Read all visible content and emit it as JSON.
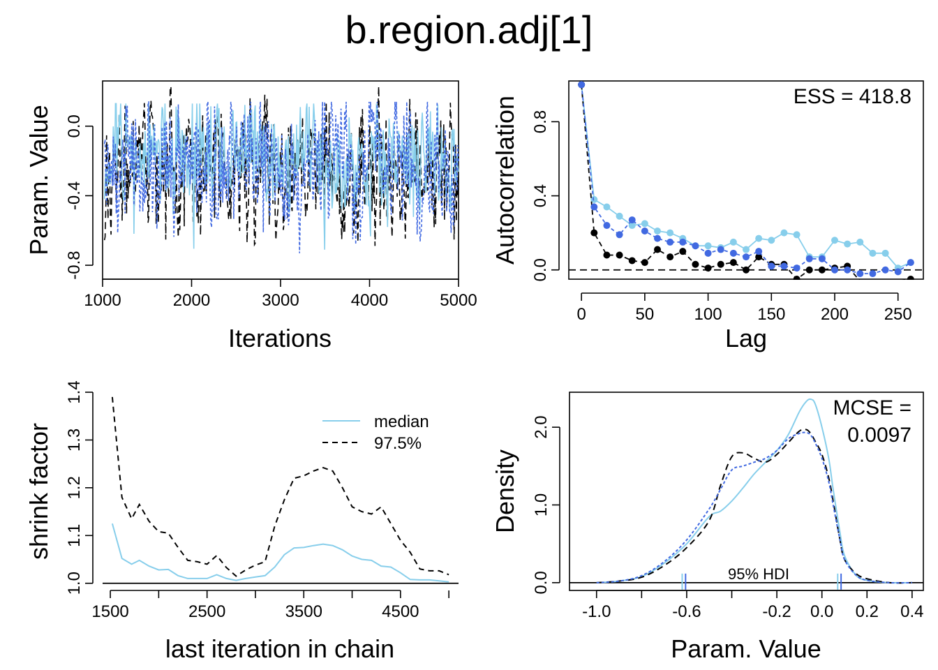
{
  "title": "b.region.adj[1]",
  "colors": {
    "chain1": "#87CEEB",
    "chain2": "#000000",
    "chain3": "#4169E1"
  },
  "chart_data": [
    {
      "id": "trace",
      "type": "line",
      "xlabel": "Iterations",
      "ylabel": "Param. Value",
      "xlim": [
        1000,
        5000
      ],
      "ylim": [
        -0.88,
        0.26
      ],
      "xticks": [
        1000,
        2000,
        3000,
        4000,
        5000
      ],
      "yticks": [
        -0.8,
        -0.4,
        0.0
      ],
      "ytick_labels": [
        "-0.8",
        "-0.4",
        "0.0"
      ],
      "series": [
        {
          "seed": 11,
          "mean": -0.18,
          "sd": 0.17,
          "min": -0.85,
          "max": 0.13
        },
        {
          "seed": 23,
          "mean": -0.26,
          "sd": 0.19,
          "min": -0.82,
          "max": 0.23
        },
        {
          "seed": 37,
          "mean": -0.22,
          "sd": 0.19,
          "min": -0.86,
          "max": 0.14
        }
      ]
    },
    {
      "id": "autocorrelation",
      "type": "line",
      "xlabel": "Lag",
      "ylabel": "Autocorrelation",
      "annotation": "ESS = 418.8",
      "xlim": [
        -10,
        270
      ],
      "ylim": [
        -0.05,
        1.02
      ],
      "xticks": [
        0,
        50,
        100,
        150,
        200,
        250
      ],
      "yticks": [
        0.0,
        0.4,
        0.8
      ],
      "ytick_labels": [
        "0.0",
        "0.4",
        "0.8"
      ],
      "x": [
        0,
        10,
        20,
        30,
        40,
        50,
        60,
        70,
        80,
        90,
        100,
        110,
        120,
        130,
        140,
        150,
        160,
        170,
        180,
        190,
        200,
        210,
        220,
        230,
        240,
        250,
        260
      ],
      "series": [
        {
          "values": [
            1.0,
            0.38,
            0.34,
            0.29,
            0.24,
            0.25,
            0.21,
            0.2,
            0.17,
            0.13,
            0.13,
            0.12,
            0.15,
            0.11,
            0.17,
            0.16,
            0.2,
            0.19,
            0.07,
            0.07,
            0.16,
            0.14,
            0.15,
            0.09,
            0.09,
            0.01,
            0.04
          ]
        },
        {
          "values": [
            1.0,
            0.2,
            0.08,
            0.08,
            0.05,
            0.04,
            0.11,
            0.07,
            0.1,
            0.03,
            0.01,
            0.03,
            0.04,
            0.0,
            0.07,
            0.03,
            0.03,
            -0.05,
            0.0,
            0.0,
            0.01,
            0.02,
            -0.06,
            -0.06,
            -0.06,
            -0.06,
            -0.05
          ]
        },
        {
          "values": [
            1.0,
            0.34,
            0.24,
            0.19,
            0.27,
            0.21,
            0.17,
            0.15,
            0.15,
            0.13,
            0.09,
            0.11,
            0.09,
            0.07,
            0.1,
            0.02,
            0.02,
            0.01,
            0.06,
            0.06,
            0.0,
            0.0,
            -0.02,
            -0.02,
            0.0,
            -0.01,
            0.04
          ]
        }
      ]
    },
    {
      "id": "shrink",
      "type": "line",
      "xlabel": "last iteration in chain",
      "ylabel": "shrink factor",
      "xlim": [
        1420,
        5100
      ],
      "ylim": [
        0.985,
        1.4
      ],
      "xticks": [
        1500,
        2500,
        3500,
        4500
      ],
      "xtick_labels": [
        "1500",
        "2500",
        "3500",
        "4500"
      ],
      "yticks": [
        1.0,
        1.1,
        1.2,
        1.3,
        1.4
      ],
      "ytick_labels": [
        "1.0",
        "1.1",
        "1.2",
        "1.3",
        "1.4"
      ],
      "hline": 1.0,
      "x": [
        1520,
        1620,
        1720,
        1800,
        1900,
        2000,
        2100,
        2200,
        2300,
        2400,
        2500,
        2600,
        2700,
        2800,
        2900,
        3000,
        3100,
        3200,
        3300,
        3400,
        3500,
        3600,
        3700,
        3800,
        3900,
        4000,
        4100,
        4200,
        4300,
        4400,
        4500,
        4600,
        4700,
        4800,
        4900,
        5000
      ],
      "series": [
        {
          "name": "median",
          "values": [
            1.125,
            1.052,
            1.04,
            1.048,
            1.036,
            1.028,
            1.029,
            1.016,
            1.01,
            1.01,
            1.01,
            1.018,
            1.01,
            1.006,
            1.01,
            1.013,
            1.016,
            1.034,
            1.06,
            1.074,
            1.075,
            1.079,
            1.082,
            1.079,
            1.07,
            1.057,
            1.05,
            1.048,
            1.036,
            1.034,
            1.022,
            1.008,
            1.007,
            1.007,
            1.005,
            1.003
          ]
        },
        {
          "name": "97.5%",
          "values": [
            1.39,
            1.18,
            1.135,
            1.165,
            1.13,
            1.108,
            1.105,
            1.075,
            1.048,
            1.045,
            1.04,
            1.058,
            1.033,
            1.015,
            1.028,
            1.038,
            1.045,
            1.12,
            1.175,
            1.22,
            1.225,
            1.235,
            1.242,
            1.235,
            1.2,
            1.16,
            1.15,
            1.145,
            1.16,
            1.125,
            1.09,
            1.065,
            1.03,
            1.026,
            1.026,
            1.018
          ]
        }
      ]
    },
    {
      "id": "density",
      "type": "line",
      "xlabel": "Param. Value",
      "ylabel": "Density",
      "annotation_line1": "MCSE =",
      "annotation_line2": "0.0097",
      "hdi_label": "95% HDI",
      "xlim": [
        -1.12,
        0.45
      ],
      "ylim": [
        -0.1,
        2.45
      ],
      "xticks": [
        -1.0,
        -0.6,
        -0.2,
        0.0,
        0.2,
        0.4
      ],
      "xtick_labels": [
        "-1.0",
        "-0.6",
        "-0.2",
        "0.0",
        "0.2",
        "0.4"
      ],
      "yticks": [
        0.0,
        1.0,
        2.0
      ],
      "ytick_labels": [
        "0.0",
        "1.0",
        "2.0"
      ],
      "hdi_ticks": [
        -0.62,
        -0.605,
        0.07,
        0.085
      ],
      "x": [
        -1.0,
        -0.9,
        -0.8,
        -0.7,
        -0.6,
        -0.5,
        -0.45,
        -0.4,
        -0.35,
        -0.3,
        -0.25,
        -0.2,
        -0.15,
        -0.1,
        -0.07,
        -0.05,
        -0.03,
        0.0,
        0.03,
        0.05,
        0.08,
        0.1,
        0.15,
        0.2,
        0.3,
        0.4
      ],
      "series": [
        {
          "values": [
            0.0,
            0.02,
            0.08,
            0.25,
            0.5,
            0.85,
            0.92,
            1.05,
            1.22,
            1.4,
            1.55,
            1.7,
            1.9,
            2.2,
            2.33,
            2.36,
            2.3,
            2.0,
            1.6,
            1.2,
            0.65,
            0.35,
            0.1,
            0.03,
            0.0,
            0.0
          ]
        },
        {
          "values": [
            0.0,
            0.02,
            0.07,
            0.22,
            0.45,
            0.8,
            1.25,
            1.62,
            1.67,
            1.6,
            1.55,
            1.65,
            1.8,
            1.95,
            1.97,
            1.92,
            1.82,
            1.65,
            1.35,
            1.05,
            0.55,
            0.3,
            0.12,
            0.05,
            0.0,
            0.0
          ]
        },
        {
          "values": [
            0.0,
            0.02,
            0.09,
            0.27,
            0.55,
            0.95,
            1.2,
            1.45,
            1.5,
            1.55,
            1.6,
            1.7,
            1.85,
            1.92,
            1.93,
            1.9,
            1.8,
            1.6,
            1.3,
            1.0,
            0.55,
            0.3,
            0.1,
            0.03,
            0.0,
            0.0
          ]
        }
      ]
    }
  ]
}
